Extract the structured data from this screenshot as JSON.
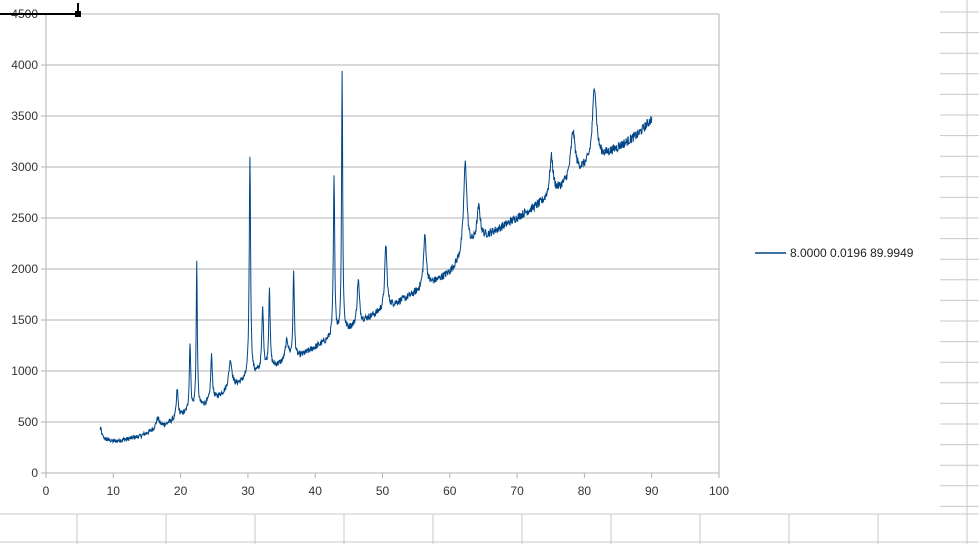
{
  "colors": {
    "series": "#004586",
    "grid": "#b3b3b3",
    "axis": "#b3b3b3",
    "sheet_grid": "#c8c8c8",
    "selection": "#000000"
  },
  "legend": {
    "label": "8.0000 0.0196 89.9949",
    "placement": "right"
  },
  "chart_data": {
    "type": "line",
    "title": "",
    "xlabel": "",
    "ylabel": "",
    "xlim": [
      0,
      100
    ],
    "ylim": [
      0,
      4500
    ],
    "grid": true,
    "x_ticks": [
      0,
      10,
      20,
      30,
      40,
      50,
      60,
      70,
      80,
      90,
      100
    ],
    "y_ticks": [
      0,
      500,
      1000,
      1500,
      2000,
      2500,
      3000,
      3500,
      4000,
      4500
    ],
    "x_tick_labels": [
      "0",
      "10",
      "20",
      "30",
      "40",
      "50",
      "60",
      "70",
      "80",
      "90",
      "100"
    ],
    "y_tick_labels": [
      "0",
      "500",
      "1000",
      "1500",
      "2000",
      "2500",
      "3000",
      "3500",
      "4000",
      "4500"
    ],
    "series": [
      {
        "name": "8.0000 0.0196 89.9949",
        "x_range": [
          8.0,
          90.0
        ],
        "baseline": [
          [
            8,
            340
          ],
          [
            10,
            310
          ],
          [
            12,
            330
          ],
          [
            14,
            360
          ],
          [
            16,
            420
          ],
          [
            18,
            480
          ],
          [
            20,
            560
          ],
          [
            22,
            620
          ],
          [
            24,
            680
          ],
          [
            26,
            760
          ],
          [
            28,
            840
          ],
          [
            30,
            920
          ],
          [
            32,
            990
          ],
          [
            34,
            1040
          ],
          [
            36,
            1090
          ],
          [
            38,
            1150
          ],
          [
            40,
            1230
          ],
          [
            42,
            1300
          ],
          [
            44,
            1360
          ],
          [
            46,
            1440
          ],
          [
            48,
            1520
          ],
          [
            50,
            1590
          ],
          [
            52,
            1660
          ],
          [
            54,
            1730
          ],
          [
            56,
            1800
          ],
          [
            58,
            1880
          ],
          [
            60,
            1960
          ],
          [
            62,
            2110
          ],
          [
            64,
            2260
          ],
          [
            66,
            2340
          ],
          [
            68,
            2420
          ],
          [
            70,
            2500
          ],
          [
            72,
            2580
          ],
          [
            74,
            2660
          ],
          [
            76,
            2760
          ],
          [
            78,
            2870
          ],
          [
            80,
            2980
          ],
          [
            82,
            3070
          ],
          [
            84,
            3150
          ],
          [
            86,
            3230
          ],
          [
            88,
            3320
          ],
          [
            90,
            3470
          ]
        ],
        "peaks": [
          {
            "x": 8.1,
            "h": 100,
            "w": 0.2
          },
          {
            "x": 16.6,
            "h": 100,
            "w": 0.3
          },
          {
            "x": 19.5,
            "h": 280,
            "w": 0.15
          },
          {
            "x": 21.4,
            "h": 670,
            "w": 0.12
          },
          {
            "x": 22.4,
            "h": 1420,
            "w": 0.1
          },
          {
            "x": 24.6,
            "h": 440,
            "w": 0.15
          },
          {
            "x": 27.4,
            "h": 280,
            "w": 0.3
          },
          {
            "x": 30.3,
            "h": 2180,
            "w": 0.12
          },
          {
            "x": 32.2,
            "h": 610,
            "w": 0.15
          },
          {
            "x": 33.2,
            "h": 800,
            "w": 0.12
          },
          {
            "x": 35.8,
            "h": 200,
            "w": 0.3
          },
          {
            "x": 36.8,
            "h": 860,
            "w": 0.12
          },
          {
            "x": 42.8,
            "h": 1560,
            "w": 0.12
          },
          {
            "x": 44.0,
            "h": 2560,
            "w": 0.1
          },
          {
            "x": 46.4,
            "h": 430,
            "w": 0.2
          },
          {
            "x": 50.5,
            "h": 630,
            "w": 0.2
          },
          {
            "x": 56.3,
            "h": 510,
            "w": 0.25
          },
          {
            "x": 62.3,
            "h": 900,
            "w": 0.3
          },
          {
            "x": 64.3,
            "h": 320,
            "w": 0.3
          },
          {
            "x": 75.1,
            "h": 380,
            "w": 0.3
          },
          {
            "x": 78.3,
            "h": 450,
            "w": 0.4
          },
          {
            "x": 81.5,
            "h": 740,
            "w": 0.35
          }
        ],
        "noise_amplitude": 60
      }
    ]
  }
}
